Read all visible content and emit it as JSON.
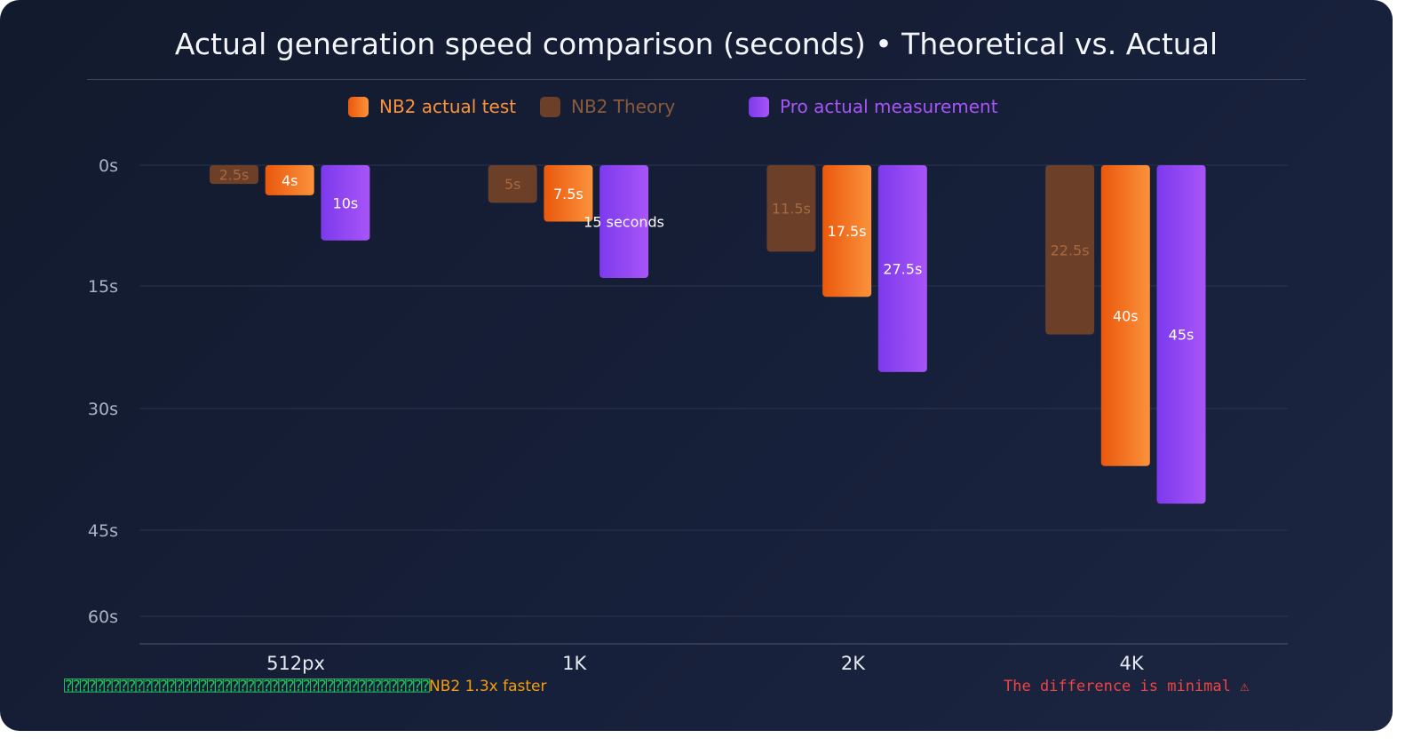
{
  "chart_data": {
    "type": "bar",
    "title": "Actual generation speed comparison (seconds)  •  Theoretical vs. Actual",
    "categories": [
      "512px",
      "1K",
      "2K",
      "4K"
    ],
    "y_ticks": [
      "0s",
      "15s",
      "30s",
      "45s",
      "60s"
    ],
    "ylim": [
      0,
      60
    ],
    "y_inverted": true,
    "grid": true,
    "legend_position": "top-center",
    "series": [
      {
        "name": "NB2 Theory",
        "color": "#6b3f28",
        "label_color": "#a8693f",
        "values": [
          2.5,
          5,
          11.5,
          22.5
        ],
        "labels": [
          "2.5s",
          "5s",
          "11.5s",
          "22.5s"
        ]
      },
      {
        "name": "NB2 actual test",
        "color": "#f97316",
        "label_color": "#ffffff",
        "values": [
          4,
          7.5,
          17.5,
          40
        ],
        "labels": [
          "4s",
          "7.5s",
          "17.5s",
          "40s"
        ]
      },
      {
        "name": "Pro actual measurement",
        "color": "#8b3cf0",
        "label_color": "#ffffff",
        "values": [
          10,
          15,
          27.5,
          45
        ],
        "labels": [
          "10s",
          "15 seconds",
          "27.5s",
          "45s"
        ]
      }
    ],
    "annotations": [
      {
        "text_garbled": "⍰⍰⍰⍰⍰⍰⍰⍰⍰⍰⍰⍰⍰⍰⍰⍰⍰⍰⍰⍰⍰⍰⍰⍰⍰⍰⍰⍰⍰⍰⍰⍰⍰⍰⍰⍰⍰⍰⍰⍰⍰⍰⍰⍰⍰⍰",
        "text": "NB2 1.3x faster",
        "color": "#f59e0b"
      },
      {
        "text": "The difference is minimal ⚠",
        "color": "#ef4444"
      }
    ]
  },
  "legend": [
    {
      "label": "NB2 actual test",
      "color": "#f97316",
      "text_color": "#fb923c"
    },
    {
      "label": "NB2 Theory",
      "color": "#6b3f28",
      "text_color": "#8a5a3c"
    },
    {
      "label": "Pro actual measurement",
      "color": "#8b3cf0",
      "text_color": "#a855f7"
    }
  ]
}
